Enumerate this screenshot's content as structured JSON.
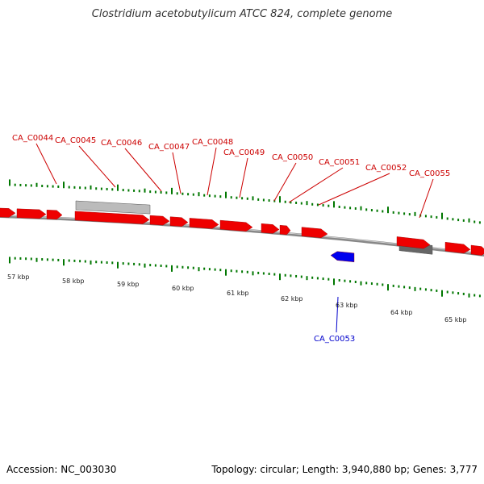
{
  "title": "Clostridium acetobutylicum ATCC 824, complete genome",
  "footer": {
    "accession": "Accession: NC_003030",
    "summary": "Topology: circular; Length: 3,940,880 bp; Genes: 3,777"
  },
  "colors": {
    "forward_gene": "#ee0000",
    "reverse_gene": "#0000ee",
    "other_feature": "#bbbbbb",
    "other_feature_dark": "#666666",
    "backbone": "#888888",
    "ticks": "#007700",
    "top_label": "#cc0000",
    "bottom_label": "#0000cc"
  },
  "kbp_labels": [
    "57 kbp",
    "58 kbp",
    "59 kbp",
    "60 kbp",
    "61 kbp",
    "62 kbp",
    "63 kbp",
    "64 kbp",
    "65 kbp"
  ],
  "top_labels": [
    "CA_C0044",
    "CA_C0045",
    "CA_C0046",
    "CA_C0047",
    "CA_C0048",
    "CA_C0049",
    "CA_C0050",
    "CA_C0051",
    "CA_C0052",
    "CA_C0055"
  ],
  "bottom_labels": [
    "CA_C0053"
  ]
}
